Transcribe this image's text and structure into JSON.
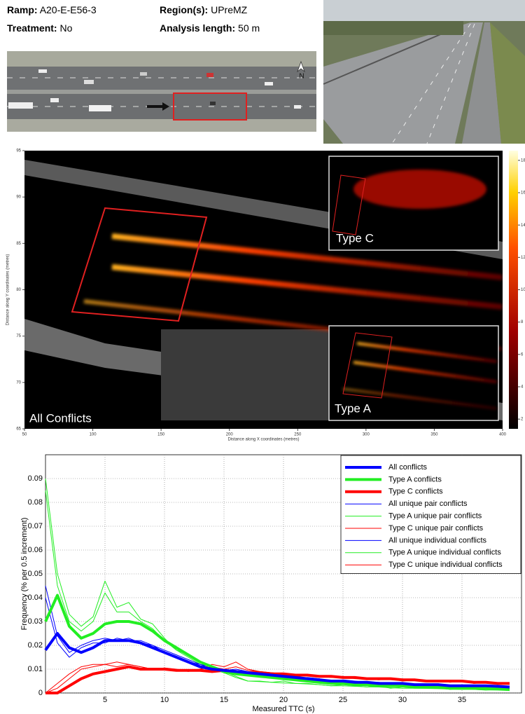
{
  "header": {
    "ramp_label": "Ramp:",
    "ramp": "A20-E-E56-3",
    "treatment_label": "Treatment:",
    "treatment": "No",
    "region_label": "Region(s):",
    "region": "UPreMZ",
    "length_label": "Analysis length:",
    "length": "50 m"
  },
  "aerial": {
    "north": "N"
  },
  "chart_data": [
    {
      "type": "heatmap",
      "xlabel": "Distance along X coordinates (metres)",
      "ylabel": "Distance along Y coordinates (metres)",
      "xlim": [
        50,
        400
      ],
      "ylim": [
        65,
        95
      ],
      "xticks": [
        50,
        100,
        150,
        200,
        250,
        300,
        350,
        400
      ],
      "yticks": [
        65,
        70,
        75,
        80,
        85,
        90,
        95
      ],
      "clim": [
        1.4,
        18.6
      ],
      "cticks": [
        2,
        4,
        6,
        8,
        10,
        12,
        14,
        16,
        18
      ],
      "annotations": [
        "All Conflicts",
        "Type C",
        "Type A"
      ]
    },
    {
      "type": "line",
      "xlabel": "Measured TTC (s)",
      "ylabel": "Frequency (% per 0.5 increment)",
      "x": [
        0,
        1,
        2,
        3,
        4,
        5,
        6,
        7,
        8,
        9,
        10,
        11,
        12,
        13,
        14,
        15,
        16,
        17,
        18,
        19,
        20,
        21,
        22,
        23,
        24,
        25,
        26,
        27,
        28,
        29,
        30,
        31,
        32,
        33,
        34,
        35,
        36,
        37,
        38,
        39
      ],
      "xlim": [
        0,
        40
      ],
      "ylim": [
        0,
        0.1
      ],
      "xticks": [
        5,
        10,
        15,
        20,
        25,
        30,
        35
      ],
      "yticks": [
        0,
        0.01,
        0.02,
        0.03,
        0.04,
        0.05,
        0.06,
        0.07,
        0.08,
        0.09
      ],
      "grid": true,
      "legend": "upper right",
      "series": [
        {
          "name": "All conflicts",
          "color": "#0000ff",
          "width": 4,
          "values": [
            0.018,
            0.025,
            0.019,
            0.017,
            0.019,
            0.022,
            0.022,
            0.022,
            0.021,
            0.019,
            0.017,
            0.015,
            0.013,
            0.011,
            0.01,
            0.0095,
            0.009,
            0.0085,
            0.008,
            0.0075,
            0.007,
            0.0065,
            0.006,
            0.0055,
            0.005,
            0.005,
            0.0045,
            0.0045,
            0.004,
            0.004,
            0.004,
            0.0035,
            0.0035,
            0.0035,
            0.003,
            0.003,
            0.003,
            0.003,
            0.0028,
            0.0025
          ]
        },
        {
          "name": "Type A conflicts",
          "color": "#22ee22",
          "width": 4,
          "values": [
            0.03,
            0.041,
            0.028,
            0.023,
            0.025,
            0.029,
            0.03,
            0.03,
            0.029,
            0.026,
            0.022,
            0.019,
            0.016,
            0.013,
            0.011,
            0.009,
            0.008,
            0.0075,
            0.007,
            0.0065,
            0.006,
            0.0055,
            0.005,
            0.0045,
            0.004,
            0.004,
            0.0035,
            0.0035,
            0.003,
            0.003,
            0.003,
            0.0025,
            0.0025,
            0.0025,
            0.002,
            0.002,
            0.002,
            0.002,
            0.0018,
            0.0015
          ]
        },
        {
          "name": "Type C conflicts",
          "color": "#ff0000",
          "width": 4,
          "values": [
            0,
            0,
            0.003,
            0.006,
            0.008,
            0.009,
            0.01,
            0.011,
            0.01,
            0.01,
            0.01,
            0.0095,
            0.0095,
            0.0095,
            0.009,
            0.0095,
            0.009,
            0.0085,
            0.0085,
            0.008,
            0.008,
            0.0075,
            0.0075,
            0.007,
            0.007,
            0.0065,
            0.0065,
            0.006,
            0.006,
            0.006,
            0.0055,
            0.0055,
            0.005,
            0.005,
            0.005,
            0.005,
            0.0045,
            0.0045,
            0.004,
            0.004
          ]
        },
        {
          "name": "All unique pair conflicts",
          "color": "#0000ff",
          "width": 1,
          "values": [
            0.04,
            0.021,
            0.015,
            0.019,
            0.021,
            0.021,
            0.023,
            0.022,
            0.022,
            0.02,
            0.018,
            0.016,
            0.014,
            0.012,
            0.011,
            0.0095,
            0.01,
            0.009,
            0.008,
            0.008,
            0.007,
            0.006,
            0.0065,
            0.006,
            0.005,
            0.0055,
            0.005,
            0.0045,
            0.0045,
            0.004,
            0.0042,
            0.0038,
            0.0035,
            0.0035,
            0.003,
            0.0032,
            0.003,
            0.0028,
            0.003,
            0.0025
          ]
        },
        {
          "name": "Type A unique pair conflicts",
          "color": "#22ee22",
          "width": 1,
          "values": [
            0.09,
            0.05,
            0.033,
            0.028,
            0.032,
            0.047,
            0.036,
            0.038,
            0.031,
            0.029,
            0.023,
            0.018,
            0.016,
            0.013,
            0.011,
            0.009,
            0.007,
            0.005,
            0.005,
            0.0045,
            0.005,
            0.004,
            0.004,
            0.0035,
            0.003,
            0.0035,
            0.003,
            0.0025,
            0.003,
            0.002,
            0.0025,
            0.002,
            0.002,
            0.0022,
            0.0015,
            0.002,
            0.0015,
            0.0012,
            0.0015,
            0.001
          ]
        },
        {
          "name": "Type C unique pair conflicts",
          "color": "#ff0000",
          "width": 1,
          "values": [
            0,
            0.004,
            0.008,
            0.011,
            0.012,
            0.012,
            0.013,
            0.012,
            0.011,
            0.01,
            0.0105,
            0.01,
            0.009,
            0.01,
            0.012,
            0.011,
            0.013,
            0.01,
            0.009,
            0.0085,
            0.008,
            0.007,
            0.0075,
            0.007,
            0.0065,
            0.007,
            0.006,
            0.006,
            0.0055,
            0.006,
            0.005,
            0.0055,
            0.005,
            0.005,
            0.0045,
            0.005,
            0.004,
            0.0045,
            0.004,
            0.004
          ]
        },
        {
          "name": "All unique individual conflicts",
          "color": "#0000ff",
          "width": 1,
          "values": [
            0.045,
            0.024,
            0.017,
            0.02,
            0.022,
            0.023,
            0.022,
            0.023,
            0.021,
            0.02,
            0.017,
            0.015,
            0.013,
            0.012,
            0.01,
            0.009,
            0.0095,
            0.0085,
            0.008,
            0.0075,
            0.007,
            0.0065,
            0.006,
            0.0058,
            0.0052,
            0.005,
            0.0048,
            0.0045,
            0.0042,
            0.004,
            0.0038,
            0.0036,
            0.0034,
            0.0032,
            0.003,
            0.003,
            0.0029,
            0.0028,
            0.0027,
            0.0025
          ]
        },
        {
          "name": "Type A unique individual conflicts",
          "color": "#22ee22",
          "width": 1,
          "values": [
            0.085,
            0.045,
            0.03,
            0.026,
            0.03,
            0.042,
            0.034,
            0.034,
            0.03,
            0.027,
            0.022,
            0.018,
            0.015,
            0.012,
            0.01,
            0.0085,
            0.0065,
            0.005,
            0.0048,
            0.0045,
            0.0042,
            0.004,
            0.0038,
            0.0035,
            0.003,
            0.003,
            0.0028,
            0.0026,
            0.0025,
            0.0022,
            0.002,
            0.002,
            0.0019,
            0.0018,
            0.0016,
            0.0015,
            0.0015,
            0.0013,
            0.0012,
            0.001
          ]
        },
        {
          "name": "Type C unique individual conflicts",
          "color": "#ff0000",
          "width": 1,
          "values": [
            0,
            0.002,
            0.006,
            0.01,
            0.011,
            0.012,
            0.011,
            0.012,
            0.011,
            0.01,
            0.01,
            0.0095,
            0.0095,
            0.01,
            0.011,
            0.01,
            0.011,
            0.0095,
            0.009,
            0.0085,
            0.008,
            0.0075,
            0.0075,
            0.007,
            0.007,
            0.0065,
            0.0065,
            0.006,
            0.006,
            0.0058,
            0.0055,
            0.0052,
            0.005,
            0.005,
            0.0048,
            0.0046,
            0.0044,
            0.0042,
            0.0041,
            0.004
          ]
        }
      ]
    }
  ]
}
